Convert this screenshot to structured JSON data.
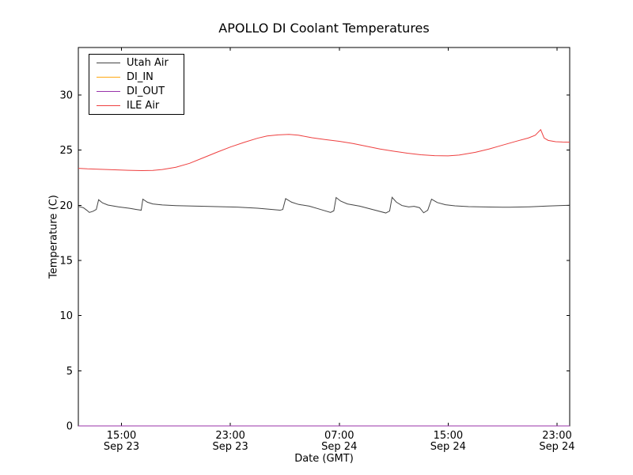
{
  "chart_data": {
    "type": "line",
    "title": "APOLLO DI Coolant Temperatures",
    "xlabel": "Date (GMT)",
    "ylabel": "Temperature (C)",
    "x_axis_unit": "hours since Sep 23 00:00 GMT",
    "xlim": [
      11.83,
      47.93
    ],
    "ylim": [
      0,
      34.3
    ],
    "yticks": [
      0,
      5,
      10,
      15,
      20,
      25,
      30
    ],
    "xticks": [
      {
        "hours": 15,
        "line1": "15:00",
        "line2": "Sep 23"
      },
      {
        "hours": 23,
        "line1": "23:00",
        "line2": "Sep 23"
      },
      {
        "hours": 31,
        "line1": "07:00",
        "line2": "Sep 24"
      },
      {
        "hours": 39,
        "line1": "15:00",
        "line2": "Sep 24"
      },
      {
        "hours": 47,
        "line1": "23:00",
        "line2": "Sep 24"
      }
    ],
    "grid": false,
    "legend_position": "upper-left",
    "background": "#ffffff",
    "frame_color": "#000000",
    "points_format": [
      "hours_gmt",
      "deg_C"
    ],
    "series": [
      {
        "name": "Utah Air",
        "color": "#444444",
        "points": [
          [
            11.83,
            19.9
          ],
          [
            12.2,
            19.78
          ],
          [
            12.45,
            19.55
          ],
          [
            12.64,
            19.35
          ],
          [
            12.9,
            19.45
          ],
          [
            13.15,
            19.62
          ],
          [
            13.32,
            20.5
          ],
          [
            13.6,
            20.22
          ],
          [
            14.0,
            20.02
          ],
          [
            14.8,
            19.85
          ],
          [
            15.6,
            19.72
          ],
          [
            16.1,
            19.62
          ],
          [
            16.45,
            19.55
          ],
          [
            16.57,
            20.55
          ],
          [
            16.9,
            20.28
          ],
          [
            17.3,
            20.12
          ],
          [
            18.0,
            20.03
          ],
          [
            19.0,
            19.97
          ],
          [
            20.5,
            19.92
          ],
          [
            22.0,
            19.88
          ],
          [
            23.5,
            19.83
          ],
          [
            25.0,
            19.73
          ],
          [
            26.0,
            19.63
          ],
          [
            26.65,
            19.55
          ],
          [
            26.85,
            19.62
          ],
          [
            27.06,
            20.6
          ],
          [
            27.5,
            20.28
          ],
          [
            28.0,
            20.08
          ],
          [
            28.8,
            19.92
          ],
          [
            29.6,
            19.63
          ],
          [
            30.36,
            19.35
          ],
          [
            30.6,
            19.5
          ],
          [
            30.77,
            20.7
          ],
          [
            31.1,
            20.38
          ],
          [
            31.6,
            20.12
          ],
          [
            32.5,
            19.92
          ],
          [
            33.5,
            19.6
          ],
          [
            34.42,
            19.3
          ],
          [
            34.7,
            19.48
          ],
          [
            34.88,
            20.72
          ],
          [
            35.2,
            20.28
          ],
          [
            35.6,
            19.98
          ],
          [
            36.1,
            19.85
          ],
          [
            36.5,
            19.9
          ],
          [
            36.9,
            19.78
          ],
          [
            37.2,
            19.32
          ],
          [
            37.5,
            19.55
          ],
          [
            37.78,
            20.55
          ],
          [
            38.2,
            20.25
          ],
          [
            38.8,
            20.05
          ],
          [
            39.5,
            19.95
          ],
          [
            40.5,
            19.88
          ],
          [
            42.0,
            19.84
          ],
          [
            43.5,
            19.82
          ],
          [
            45.0,
            19.86
          ],
          [
            46.3,
            19.93
          ],
          [
            47.93,
            20.0
          ]
        ]
      },
      {
        "name": "DI_IN",
        "color": "#ffa812",
        "points": [
          [
            11.83,
            0
          ],
          [
            47.93,
            0
          ]
        ]
      },
      {
        "name": "DI_OUT",
        "color": "#9933aa",
        "points": [
          [
            11.83,
            0
          ],
          [
            47.93,
            0
          ]
        ]
      },
      {
        "name": "ILE Air",
        "color": "#ee4040",
        "points": [
          [
            11.83,
            23.35
          ],
          [
            12.5,
            23.3
          ],
          [
            13.5,
            23.26
          ],
          [
            14.5,
            23.21
          ],
          [
            15.5,
            23.17
          ],
          [
            16.5,
            23.14
          ],
          [
            17.3,
            23.16
          ],
          [
            18.0,
            23.24
          ],
          [
            19.0,
            23.45
          ],
          [
            20.0,
            23.8
          ],
          [
            21.0,
            24.3
          ],
          [
            22.0,
            24.8
          ],
          [
            23.0,
            25.28
          ],
          [
            24.0,
            25.7
          ],
          [
            25.0,
            26.08
          ],
          [
            25.7,
            26.28
          ],
          [
            26.5,
            26.38
          ],
          [
            27.3,
            26.42
          ],
          [
            28.0,
            26.35
          ],
          [
            29.0,
            26.12
          ],
          [
            30.0,
            25.95
          ],
          [
            31.0,
            25.8
          ],
          [
            32.0,
            25.6
          ],
          [
            33.0,
            25.35
          ],
          [
            34.0,
            25.1
          ],
          [
            35.0,
            24.9
          ],
          [
            36.0,
            24.72
          ],
          [
            37.0,
            24.58
          ],
          [
            38.0,
            24.5
          ],
          [
            39.0,
            24.48
          ],
          [
            39.8,
            24.55
          ],
          [
            41.0,
            24.8
          ],
          [
            42.0,
            25.1
          ],
          [
            43.0,
            25.45
          ],
          [
            44.0,
            25.8
          ],
          [
            44.9,
            26.1
          ],
          [
            45.4,
            26.35
          ],
          [
            45.8,
            26.85
          ],
          [
            46.05,
            26.1
          ],
          [
            46.35,
            25.88
          ],
          [
            46.9,
            25.76
          ],
          [
            47.4,
            25.73
          ],
          [
            47.93,
            25.72
          ]
        ]
      }
    ]
  }
}
